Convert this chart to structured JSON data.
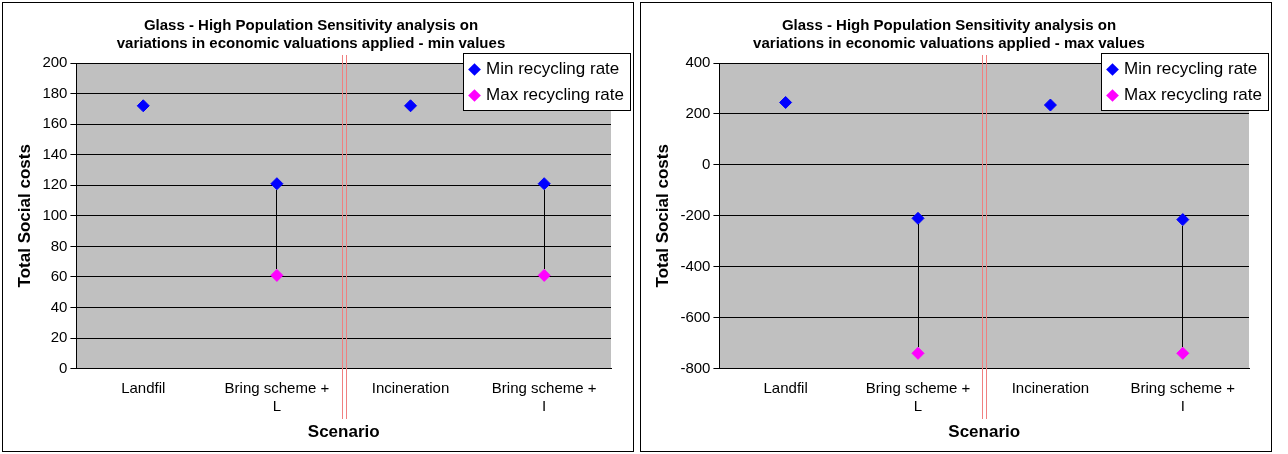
{
  "chart_data": [
    {
      "type": "scatter",
      "title": "Glass - High Population Sensitivity analysis on variations in economic valuations applied - min values",
      "xlabel": "Scenario",
      "ylabel": "Total Social costs",
      "categories": [
        "Landfil",
        "Bring scheme + L",
        "Incineration",
        "Bring scheme + I"
      ],
      "series": [
        {
          "name": "Min recycling rate",
          "color": "#0000ff",
          "values": [
            172,
            121,
            172,
            121
          ]
        },
        {
          "name": "Max recycling rate",
          "color": "#ff00ff",
          "values": [
            null,
            61,
            null,
            61
          ]
        }
      ],
      "ylim": [
        0,
        200
      ],
      "yticks": [
        0,
        20,
        40,
        60,
        80,
        100,
        120,
        140,
        160,
        180,
        200
      ],
      "grid": "y",
      "legend": "top right",
      "marker": "diamond"
    },
    {
      "type": "scatter",
      "title": "Glass - High Population Sensitivity analysis on variations in economic valuations applied - max values",
      "xlabel": "Scenario",
      "ylabel": "Total Social costs",
      "categories": [
        "Landfil",
        "Bring scheme + L",
        "Incineration",
        "Bring scheme + I"
      ],
      "series": [
        {
          "name": "Min recycling rate",
          "color": "#0000ff",
          "values": [
            245,
            -210,
            235,
            -215
          ]
        },
        {
          "name": "Max recycling rate",
          "color": "#ff00ff",
          "values": [
            null,
            -740,
            null,
            -740
          ]
        }
      ],
      "ylim": [
        -800,
        400
      ],
      "yticks": [
        -800,
        -600,
        -400,
        -200,
        0,
        200,
        400
      ],
      "grid": "y",
      "legend": "top right",
      "marker": "diamond"
    }
  ]
}
